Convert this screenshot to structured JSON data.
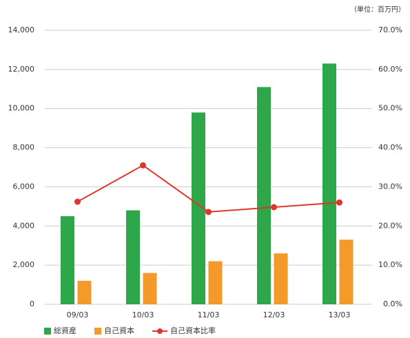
{
  "chart_data": {
    "type": "bar-line",
    "unit_label": "（単位：百万円）",
    "categories": [
      "09/03",
      "10/03",
      "11/03",
      "12/03",
      "13/03"
    ],
    "series": [
      {
        "name": "総資産",
        "color": "#2ea64a",
        "type": "bar",
        "values": [
          4500,
          4800,
          9800,
          11100,
          12300
        ]
      },
      {
        "name": "自己資本",
        "color": "#f39a2a",
        "type": "bar",
        "values": [
          1200,
          1600,
          2200,
          2600,
          3300
        ]
      },
      {
        "name": "自己資本比率",
        "color": "#e0352b",
        "type": "line",
        "axis": "y2",
        "values": [
          26.2,
          35.5,
          23.6,
          24.8,
          26.0
        ]
      }
    ],
    "ylim": [
      0,
      14000
    ],
    "yticks": [
      0,
      {
        "value": 2000,
        "label": "2,000"
      },
      {
        "value": 4000,
        "label": "4,000"
      },
      {
        "value": 6000,
        "label": "6,000"
      },
      {
        "value": 8000,
        "label": "8,000"
      },
      {
        "value": 10000,
        "label": "10,000"
      },
      {
        "value": 12000,
        "label": "12,000"
      },
      {
        "value": 14000,
        "label": "14,000"
      }
    ],
    "y2lim": [
      0,
      70
    ],
    "y2ticks": [
      {
        "value": 0,
        "label": "0.0%"
      },
      {
        "value": 10,
        "label": "10.0%"
      },
      {
        "value": 20,
        "label": "20.0%"
      },
      {
        "value": 30,
        "label": "30.0%"
      },
      {
        "value": 40,
        "label": "40.0%"
      },
      {
        "value": 50,
        "label": "50.0%"
      },
      {
        "value": 60,
        "label": "60.0%"
      },
      {
        "value": 70,
        "label": "70.0%"
      }
    ],
    "grid": true
  }
}
